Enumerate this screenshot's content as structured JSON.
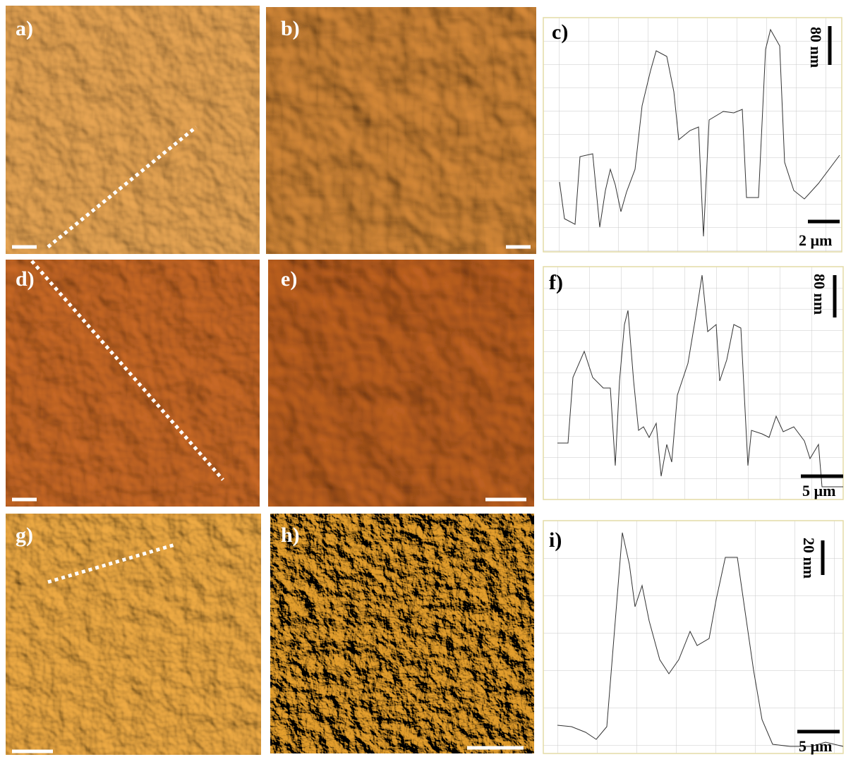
{
  "panels": [
    {
      "label": "a)"
    },
    {
      "label": "b)"
    },
    {
      "label": "c)",
      "height_scale": "80 nm",
      "length_scale": "2 µm"
    },
    {
      "label": "d)"
    },
    {
      "label": "e)"
    },
    {
      "label": "f)",
      "height_scale": "80 nm",
      "length_scale": "5 µm"
    },
    {
      "label": "g)"
    },
    {
      "label": "h)"
    },
    {
      "label": "i)",
      "height_scale": "20 nm",
      "length_scale": "5 µm"
    }
  ]
}
